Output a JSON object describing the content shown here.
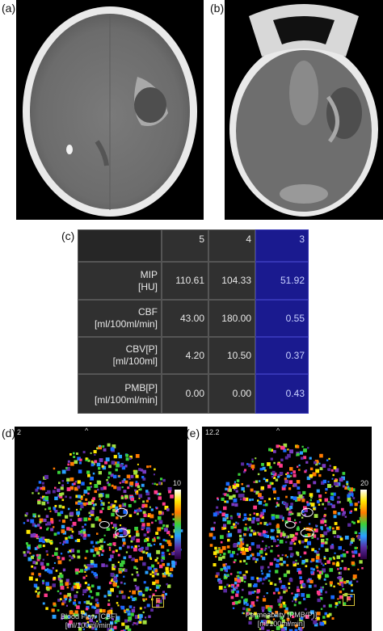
{
  "panels": {
    "a": {
      "label": "(a)"
    },
    "b": {
      "label": "(b)"
    },
    "c": {
      "label": "(c)"
    },
    "d": {
      "label": "(d)",
      "corner_number": "2",
      "caption_line1": "Blood Flow [CBF]",
      "caption_line2": "[ml/100ml/min]",
      "colorbar_max": "10",
      "marker": "F",
      "top_mark": "^"
    },
    "e": {
      "label": "(e)",
      "corner_number": "12.2",
      "caption_line1": "Permeability [PMB(P)]",
      "caption_line2": "[ml/100ml/min]",
      "colorbar_max": "20",
      "marker": "F",
      "top_mark": "^"
    }
  },
  "table": {
    "columns": [
      "5",
      "4",
      "3"
    ],
    "rows": [
      {
        "label1": "MIP",
        "label2": "[HU]",
        "values": [
          "110.61",
          "104.33",
          "51.92"
        ]
      },
      {
        "label1": "CBF",
        "label2": "[ml/100ml/min]",
        "values": [
          "43.00",
          "180.00",
          "0.55"
        ]
      },
      {
        "label1": "CBV[P]",
        "label2": "[ml/100ml]",
        "values": [
          "4.20",
          "10.50",
          "0.37"
        ]
      },
      {
        "label1": "PMB[P]",
        "label2": "[ml/100ml/min]",
        "values": [
          "0.00",
          "0.00",
          "0.43"
        ]
      }
    ]
  }
}
